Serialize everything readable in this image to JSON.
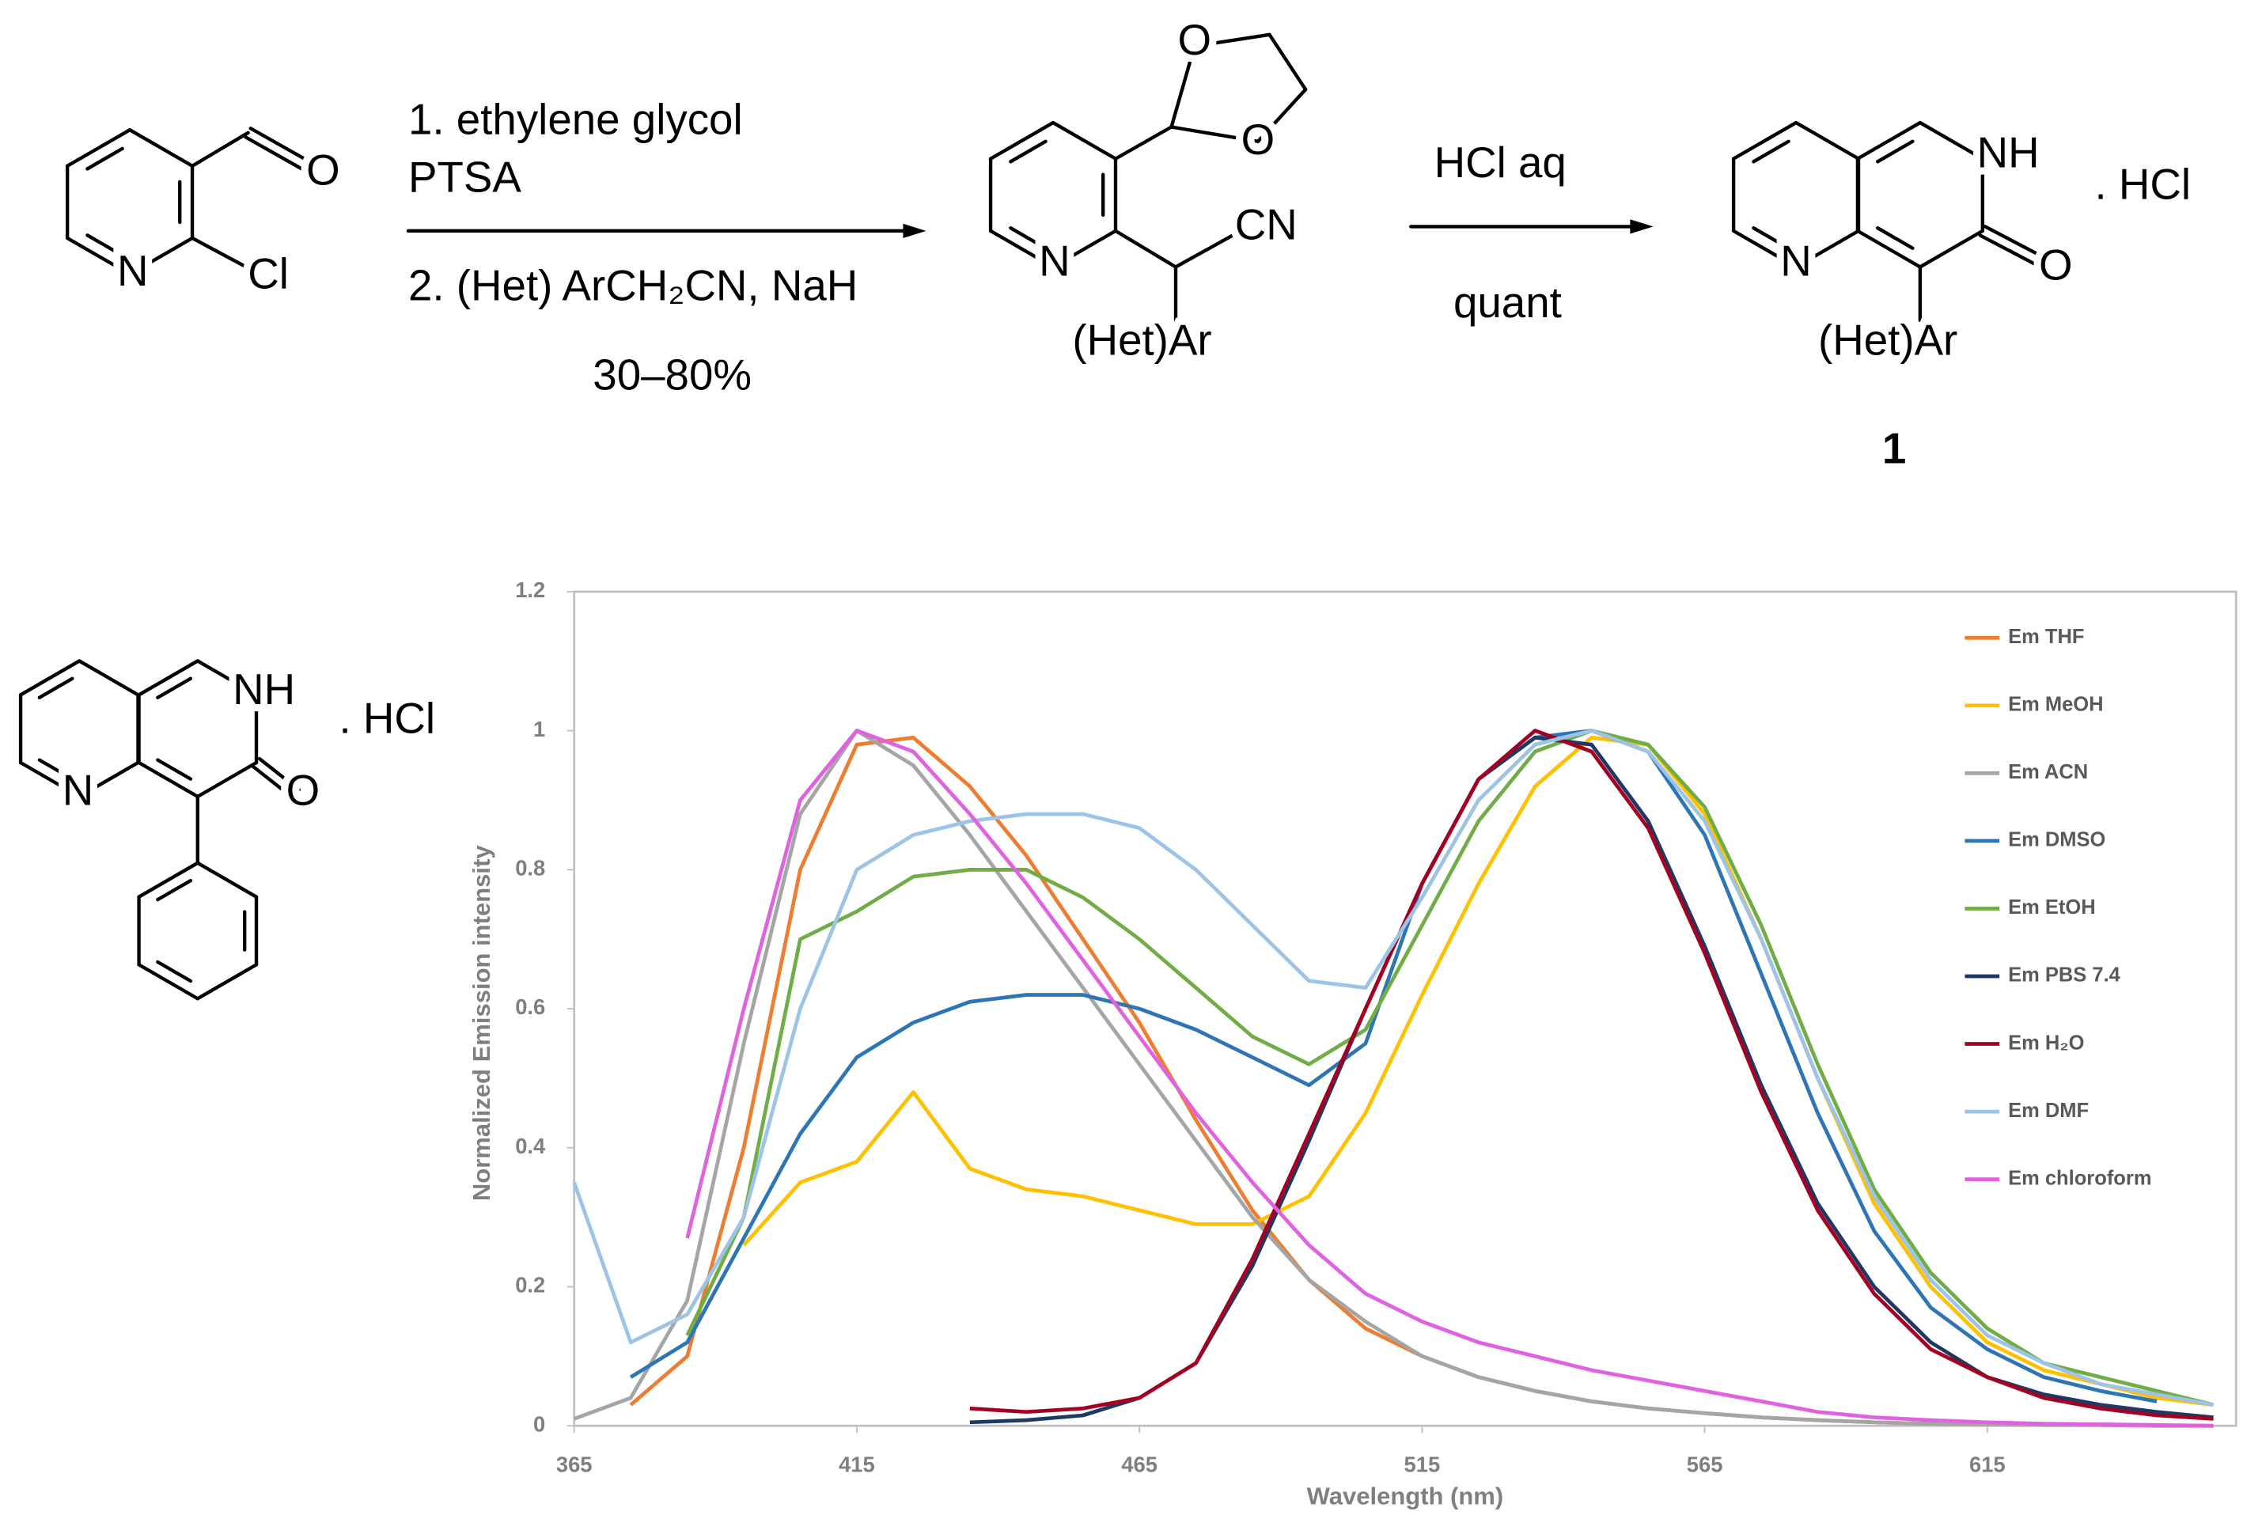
{
  "scheme": {
    "reactant": {
      "atoms": [
        "O",
        "N",
        "Cl"
      ]
    },
    "step1": {
      "conditions": [
        "1. ethylene glycol",
        "PTSA",
        "2. (Het) ArCH₂CN, NaH"
      ],
      "yield": "30–80%"
    },
    "intermediate": {
      "atoms": [
        "O",
        "O",
        "N",
        "CN",
        "(Het)Ar"
      ]
    },
    "step2": {
      "conditions": [
        "HCl aq",
        "quant"
      ]
    },
    "product": {
      "atoms": [
        "NH",
        "O",
        "N",
        "(Het)Ar"
      ],
      "salt": ". HCl",
      "label": "1"
    }
  },
  "compound": {
    "atoms": [
      "NH",
      "O",
      "N"
    ],
    "salt": ". HCl"
  },
  "chart_data": {
    "type": "line",
    "x_label": "Wavelength (nm)",
    "y_label": "Normalized Emission intensity",
    "x": [
      365,
      375,
      385,
      395,
      405,
      415,
      425,
      435,
      445,
      455,
      465,
      475,
      485,
      495,
      505,
      515,
      525,
      535,
      545,
      555,
      565,
      575,
      585,
      595,
      605,
      615,
      625,
      635,
      645,
      655
    ],
    "xlim": [
      365,
      659
    ],
    "xticks": [
      365,
      415,
      465,
      515,
      565,
      615
    ],
    "ylim": [
      0,
      1.2
    ],
    "yticks": [
      0,
      0.2,
      0.4,
      0.6,
      0.8,
      1,
      1.2
    ],
    "grid": false,
    "legend": "right",
    "series": [
      {
        "name": "Em THF",
        "color": "#ed7d31",
        "values": [
          null,
          0.03,
          0.1,
          0.4,
          0.8,
          0.98,
          0.99,
          0.92,
          0.82,
          0.7,
          0.58,
          0.44,
          0.31,
          0.21,
          0.14,
          0.1,
          0.07,
          0.05,
          0.035,
          0.025,
          0.018,
          0.012,
          0.008,
          0.005,
          0.003,
          0.002,
          0.001,
          0.001,
          0,
          0
        ]
      },
      {
        "name": "Em MeOH",
        "color": "#ffc000",
        "values": [
          null,
          null,
          null,
          0.26,
          0.35,
          0.38,
          0.48,
          0.37,
          0.34,
          0.33,
          0.31,
          0.29,
          0.29,
          0.33,
          0.45,
          0.62,
          0.78,
          0.92,
          0.99,
          0.98,
          0.88,
          0.7,
          0.5,
          0.32,
          0.2,
          0.12,
          0.08,
          0.06,
          0.04,
          0.03
        ]
      },
      {
        "name": "Em ACN",
        "color": "#a5a5a5",
        "values": [
          0.01,
          0.04,
          0.18,
          0.55,
          0.88,
          1.0,
          0.95,
          0.85,
          0.74,
          0.63,
          0.52,
          0.41,
          0.3,
          0.21,
          0.15,
          0.1,
          0.07,
          0.05,
          0.035,
          0.025,
          0.018,
          0.012,
          0.008,
          0.005,
          0.003,
          0.002,
          0.001,
          0.001,
          0,
          0
        ]
      },
      {
        "name": "Em DMSO",
        "color": "#2e75b6",
        "values": [
          null,
          0.07,
          0.12,
          0.27,
          0.42,
          0.53,
          0.58,
          0.61,
          0.62,
          0.62,
          0.6,
          0.57,
          0.53,
          0.49,
          0.55,
          0.78,
          0.93,
          0.99,
          1.0,
          0.97,
          0.85,
          0.65,
          0.45,
          0.28,
          0.17,
          0.11,
          0.07,
          0.05,
          0.035,
          null
        ]
      },
      {
        "name": "Em EtOH",
        "color": "#70ad47",
        "values": [
          null,
          null,
          0.13,
          0.3,
          0.7,
          0.74,
          0.79,
          0.8,
          0.8,
          0.76,
          0.7,
          0.63,
          0.56,
          0.52,
          0.57,
          0.72,
          0.87,
          0.97,
          1.0,
          0.98,
          0.89,
          0.72,
          0.52,
          0.34,
          0.22,
          0.14,
          0.09,
          0.07,
          0.05,
          0.03
        ]
      },
      {
        "name": "Em PBS 7.4",
        "color": "#1f3864",
        "values": [
          null,
          null,
          null,
          null,
          null,
          null,
          null,
          0.005,
          0.008,
          0.015,
          0.04,
          0.09,
          0.23,
          0.41,
          0.6,
          0.78,
          0.93,
          0.99,
          0.98,
          0.87,
          0.69,
          0.49,
          0.32,
          0.2,
          0.12,
          0.07,
          0.045,
          0.03,
          0.02,
          0.012
        ]
      },
      {
        "name": "Em H₂O",
        "color": "#a50021",
        "values": [
          null,
          null,
          null,
          null,
          null,
          null,
          null,
          0.025,
          0.02,
          0.025,
          0.04,
          0.09,
          0.24,
          0.42,
          0.6,
          0.78,
          0.93,
          1.0,
          0.97,
          0.86,
          0.68,
          0.48,
          0.31,
          0.19,
          0.11,
          0.07,
          0.04,
          0.025,
          0.015,
          0.01
        ]
      },
      {
        "name": "Em DMF",
        "color": "#9dc3e6",
        "values": [
          0.35,
          0.12,
          0.16,
          0.3,
          0.6,
          0.8,
          0.85,
          0.87,
          0.88,
          0.88,
          0.86,
          0.8,
          0.72,
          0.64,
          0.63,
          0.76,
          0.9,
          0.98,
          1.0,
          0.97,
          0.87,
          0.7,
          0.5,
          0.33,
          0.21,
          0.13,
          0.09,
          0.06,
          0.045,
          0.03
        ]
      },
      {
        "name": "Em chloroform",
        "color": "#e062e0",
        "values": [
          null,
          null,
          0.27,
          0.6,
          0.9,
          1.0,
          0.97,
          0.88,
          0.78,
          0.67,
          0.56,
          0.45,
          0.35,
          0.26,
          0.19,
          0.15,
          0.12,
          0.1,
          0.08,
          0.065,
          0.05,
          0.035,
          0.02,
          0.012,
          0.008,
          0.005,
          0.003,
          0.002,
          0.001,
          0
        ]
      }
    ]
  }
}
